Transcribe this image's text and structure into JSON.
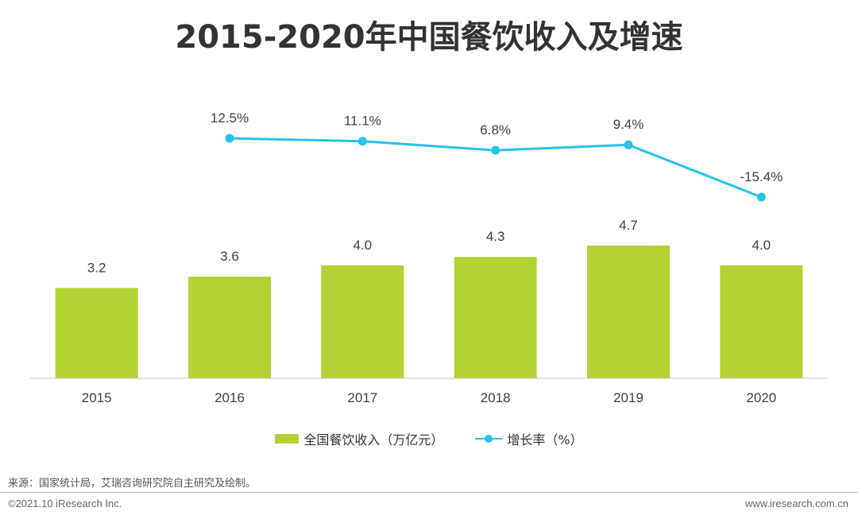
{
  "title": "2015-2020年中国餐饮收入及增速",
  "chart_data": {
    "type": "bar+line",
    "categories": [
      "2015",
      "2016",
      "2017",
      "2018",
      "2019",
      "2020"
    ],
    "series": [
      {
        "name": "全国餐饮收入（万亿元）",
        "type": "bar",
        "values": [
          3.2,
          3.6,
          4.0,
          4.3,
          4.7,
          4.0
        ],
        "labels": [
          "3.2",
          "3.6",
          "4.0",
          "4.3",
          "4.7",
          "4.0"
        ]
      },
      {
        "name": "增长率（%）",
        "type": "line",
        "values": [
          null,
          12.5,
          11.1,
          6.8,
          9.4,
          -15.4
        ],
        "labels": [
          "",
          "12.5%",
          "11.1%",
          "6.8%",
          "9.4%",
          "-15.4%"
        ]
      }
    ],
    "bar_ylim": [
      0,
      4.7
    ],
    "line_ylim": [
      -15.4,
      12.5
    ],
    "colors": {
      "bar": "#b3d234",
      "line": "#25c4e8"
    }
  },
  "legend": {
    "bar_label": "全国餐饮收入（万亿元）",
    "line_label": "增长率（%）"
  },
  "source": "来源：国家统计局，艾瑞咨询研究院自主研究及绘制。",
  "footer": {
    "copyright": "©2021.10 iResearch Inc.",
    "website": "www.iresearch.com.cn"
  }
}
